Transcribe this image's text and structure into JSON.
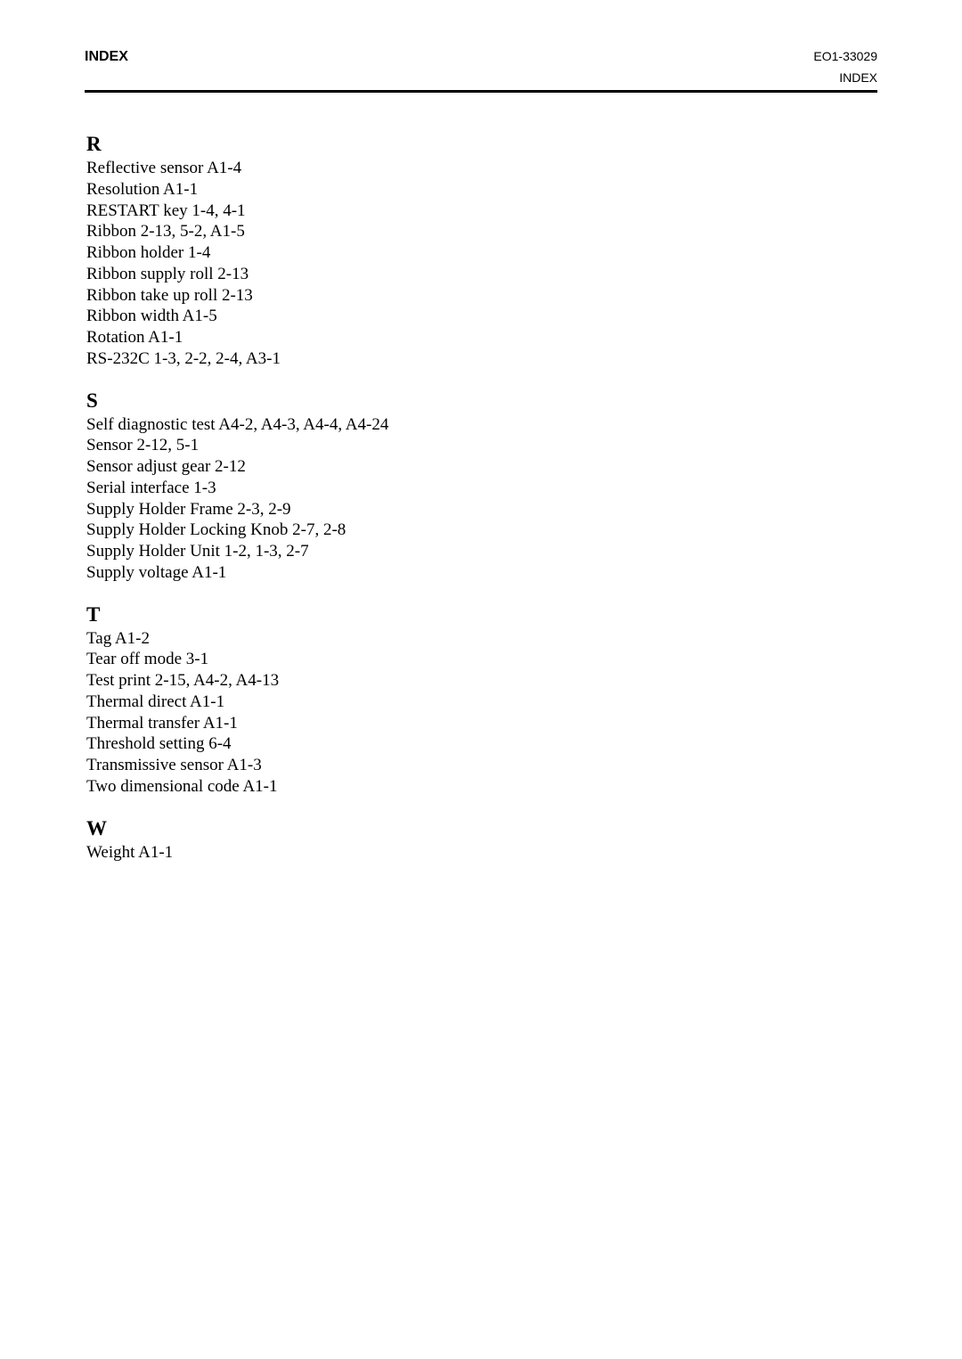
{
  "header": {
    "left_title": "INDEX",
    "doc_number": "EO1-33029",
    "page_label": "INDEX"
  },
  "sections": [
    {
      "letter": "R",
      "entries": [
        "Reflective sensor   A1-4",
        "Resolution   A1-1",
        "RESTART key   1-4, 4-1",
        "Ribbon   2-13, 5-2, A1-5",
        "Ribbon holder   1-4",
        "Ribbon supply roll   2-13",
        "Ribbon take up roll   2-13",
        "Ribbon width   A1-5",
        "Rotation   A1-1",
        "RS-232C   1-3, 2-2, 2-4, A3-1"
      ]
    },
    {
      "letter": "S",
      "entries": [
        "Self diagnostic test   A4-2, A4-3, A4-4, A4-24",
        "Sensor   2-12, 5-1",
        "Sensor adjust gear   2-12",
        "Serial interface   1-3",
        "Supply Holder Frame   2-3, 2-9",
        "Supply Holder Locking Knob   2-7, 2-8",
        "Supply Holder Unit   1-2, 1-3, 2-7",
        "Supply voltage   A1-1"
      ]
    },
    {
      "letter": "T",
      "entries": [
        "Tag   A1-2",
        "Tear off mode   3-1",
        "Test print   2-15, A4-2, A4-13",
        "Thermal direct   A1-1",
        "Thermal transfer   A1-1",
        "Threshold setting   6-4",
        "Transmissive sensor   A1-3",
        "Two dimensional code   A1-1"
      ]
    },
    {
      "letter": "W",
      "entries": [
        "Weight   A1-1"
      ]
    }
  ]
}
